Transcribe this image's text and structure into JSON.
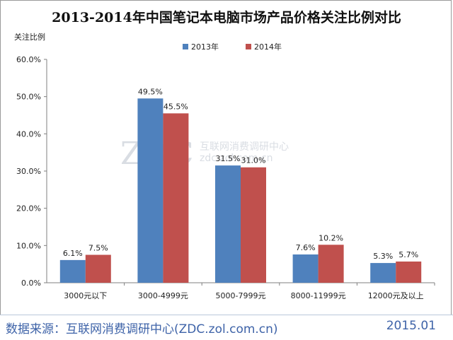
{
  "chart_data": {
    "type": "bar",
    "title": "2013-2014年中国笔记本电脑市场产品价格关注比例对比",
    "ylabel": "关注比例",
    "xlabel": "",
    "categories": [
      "3000元以下",
      "3000-4999元",
      "5000-7999元",
      "8000-11999元",
      "12000元及以上"
    ],
    "series": [
      {
        "name": "2013年",
        "values": [
          6.1,
          49.5,
          31.5,
          7.6,
          5.3
        ],
        "labels": [
          "6.1%",
          "49.5%",
          "31.5%",
          "7.6%",
          "5.3%"
        ],
        "color": "#4f81bd"
      },
      {
        "name": "2014年",
        "values": [
          7.5,
          45.5,
          31.0,
          10.2,
          5.7
        ],
        "labels": [
          "7.5%",
          "45.5%",
          "31.0%",
          "10.2%",
          "5.7%"
        ],
        "color": "#c0504d"
      }
    ],
    "ylim": [
      0,
      60
    ],
    "yticks": [
      "0.0%",
      "10.0%",
      "20.0%",
      "30.0%",
      "40.0%",
      "50.0%",
      "60.0%"
    ],
    "grid": false,
    "legend": "top-center"
  },
  "watermark": {
    "main": "ZDC",
    "sub_cn": "互联网消费调研中心",
    "sub_en": "zdc.zol.com.cn"
  },
  "footer": {
    "source": "数据来源：互联网消费调研中心(ZDC.zol.com.cn)",
    "date": "2015.01"
  }
}
